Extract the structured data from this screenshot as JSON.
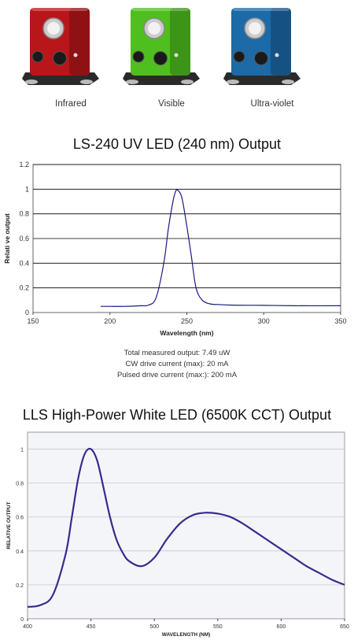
{
  "products": [
    {
      "label": "Infrared",
      "color": "#b8161a"
    },
    {
      "label": "Visible",
      "color": "#4fbf1f"
    },
    {
      "label": "Ultra-violet",
      "color": "#1c6aa8"
    }
  ],
  "chart_data": [
    {
      "type": "line",
      "title": "LS-240 UV LED (240 nm) Output",
      "xlabel": "Wavelength (nm)",
      "ylabel": "Relati ve output",
      "xlim": [
        150,
        350
      ],
      "ylim": [
        0,
        1.2
      ],
      "xticks": [
        "150",
        "200",
        "250",
        "300",
        "350"
      ],
      "yticks": [
        "0",
        "0.2",
        "0.4",
        "0.6",
        "0.8",
        "1",
        "1.2"
      ],
      "grid": "horizontal",
      "series": [
        {
          "color": "#1a1a80",
          "x": [
            194,
            200,
            210,
            220,
            225,
            230,
            235,
            238,
            241,
            243,
            245,
            247,
            250,
            253,
            256,
            260,
            265,
            270,
            280,
            300,
            320,
            350
          ],
          "y": [
            0.05,
            0.05,
            0.05,
            0.055,
            0.06,
            0.12,
            0.4,
            0.68,
            0.9,
            0.99,
            0.98,
            0.92,
            0.7,
            0.45,
            0.2,
            0.1,
            0.07,
            0.065,
            0.06,
            0.058,
            0.055,
            0.055
          ]
        }
      ]
    },
    {
      "type": "line",
      "title": "LLS High-Power White LED (6500K CCT) Output",
      "xlabel": "WAVELENGTH (NM)",
      "ylabel": "RELATIVE OUTPUT",
      "xlim": [
        400,
        650
      ],
      "ylim": [
        0,
        1.1
      ],
      "xticks": [
        "400",
        "450",
        "500",
        "550",
        "600",
        "650"
      ],
      "yticks": [
        "0",
        "0.2",
        "0.4",
        "0.6",
        "0.8",
        "1"
      ],
      "grid": "horizontal",
      "series": [
        {
          "color": "#3a2a8c",
          "x": [
            400,
            410,
            420,
            430,
            435,
            440,
            445,
            450,
            455,
            460,
            465,
            470,
            475,
            480,
            490,
            500,
            510,
            520,
            530,
            540,
            550,
            560,
            570,
            580,
            590,
            600,
            610,
            620,
            630,
            640,
            650
          ],
          "y": [
            0.07,
            0.08,
            0.14,
            0.38,
            0.6,
            0.83,
            0.97,
            1.0,
            0.93,
            0.77,
            0.6,
            0.47,
            0.39,
            0.34,
            0.31,
            0.36,
            0.47,
            0.56,
            0.61,
            0.625,
            0.62,
            0.6,
            0.56,
            0.51,
            0.46,
            0.41,
            0.36,
            0.31,
            0.27,
            0.23,
            0.2
          ]
        }
      ]
    }
  ],
  "notes": [
    "Total measured output: 7.49 uW",
    "CW drive current (max): 20 mA",
    "Pulsed drive current (max:): 200 mA"
  ]
}
